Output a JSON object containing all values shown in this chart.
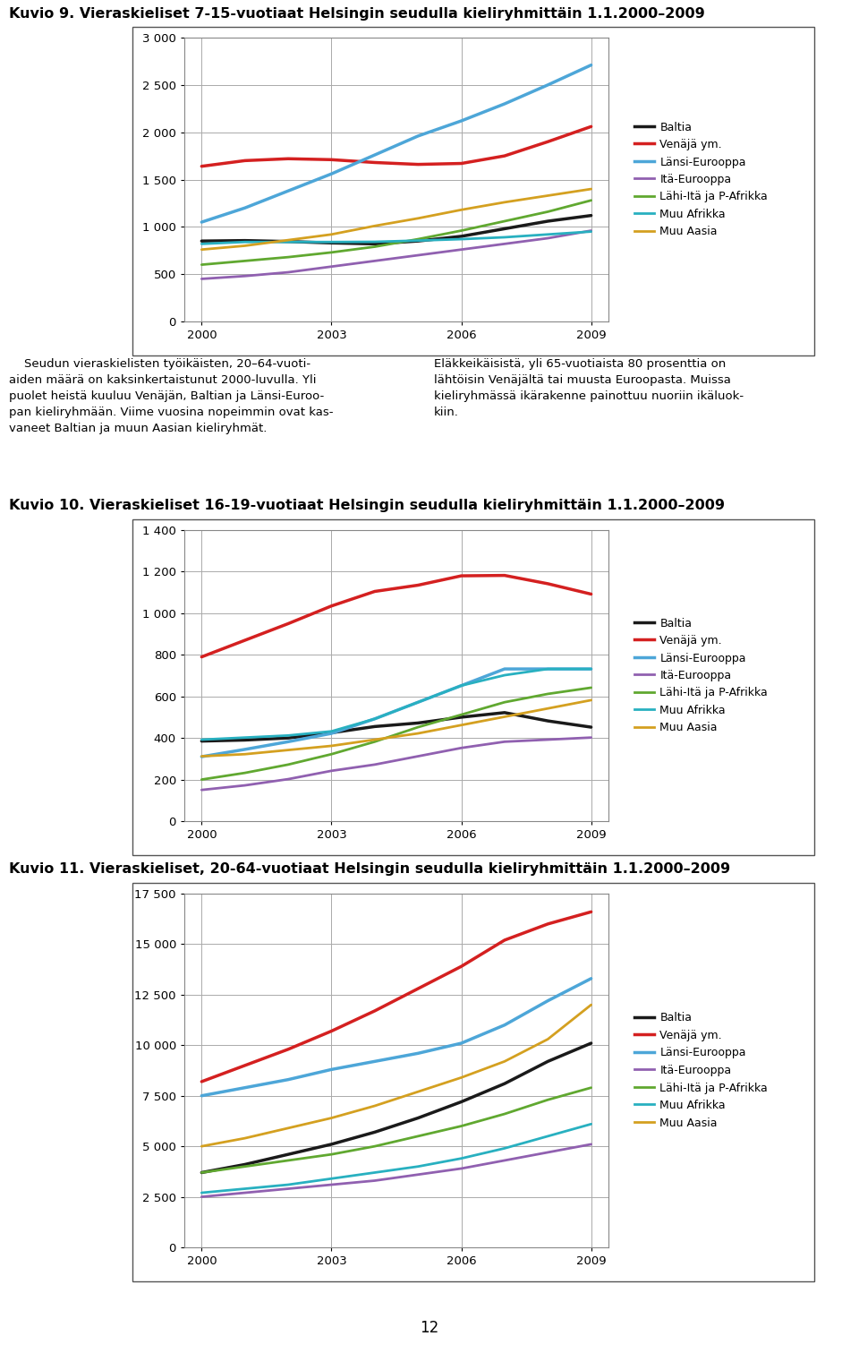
{
  "title1": "Kuvio 9. Vieraskieliset 7-15-vuotiaat Helsingin seudulla kieliryhmittäin 1.1.2000–2009",
  "title2": "Kuvio 10. Vieraskieliset 16-19-vuotiaat Helsingin seudulla kieliryhmittäin 1.1.2000–2009",
  "title3": "Kuvio 11. Vieraskieliset, 20-64-vuotiaat Helsingin seudulla kieliryhmittäin 1.1.2000–2009",
  "text_left": "    Seudun vieraskielisten työikäisten, 20–64-vuoti-\naiden määrä on kaksinkertaistunut 2000-luvulla. Yli\npuolet heistä kuuluu Venäjän, Baltian ja Länsi-Euroo-\npan kieliryhmään. Viime vuosina nopeimmin ovat kas-\nvaneet Baltian ja muun Aasian kieliryhmät.",
  "text_right": "Eläkkeikäisistä, yli 65-vuotiaista 80 prosenttia on\nlähtöisin Venäjältä tai muusta Euroopasta. Muissa\nkieliryhmässä ikärakenne painottuu nuoriin ikäluok-\nkiin.",
  "page_number": "12",
  "years": [
    2000,
    2001,
    2002,
    2003,
    2004,
    2005,
    2006,
    2007,
    2008,
    2009
  ],
  "legend_labels": [
    "Baltia",
    "Venäjä ym.",
    "Länsi-Eurooppa",
    "Itä-Eurooppa",
    "Lähi-Itä ja P-Afrikka",
    "Muu Afrikka",
    "Muu Aasia"
  ],
  "colors": [
    "#1a1a1a",
    "#d42020",
    "#4da6d8",
    "#9060b0",
    "#60a830",
    "#28b0c0",
    "#d4a020"
  ],
  "linewidths": [
    2.5,
    2.5,
    2.5,
    2.0,
    2.0,
    2.0,
    2.0
  ],
  "chart1": {
    "Baltia": [
      850,
      855,
      845,
      830,
      820,
      850,
      900,
      980,
      1060,
      1120
    ],
    "Venäjä ym.": [
      1640,
      1700,
      1720,
      1710,
      1680,
      1660,
      1670,
      1750,
      1900,
      2060
    ],
    "Länsi-Eurooppa": [
      1050,
      1200,
      1380,
      1560,
      1760,
      1960,
      2120,
      2300,
      2500,
      2710
    ],
    "Itä-Eurooppa": [
      450,
      480,
      520,
      580,
      640,
      700,
      760,
      820,
      880,
      960
    ],
    "Lähi-Itä ja P-Afrikka": [
      600,
      640,
      680,
      730,
      790,
      870,
      960,
      1060,
      1160,
      1280
    ],
    "Muu Afrikka": [
      820,
      840,
      840,
      840,
      842,
      855,
      870,
      890,
      920,
      950
    ],
    "Muu Aasia": [
      760,
      800,
      860,
      920,
      1010,
      1090,
      1180,
      1260,
      1330,
      1400
    ]
  },
  "chart1_ylim": [
    0,
    3000
  ],
  "chart1_yticks": [
    0,
    500,
    1000,
    1500,
    2000,
    2500,
    3000
  ],
  "chart2": {
    "Baltia": [
      385,
      390,
      400,
      425,
      455,
      472,
      500,
      522,
      482,
      452
    ],
    "Venäjä ym.": [
      790,
      870,
      950,
      1035,
      1105,
      1135,
      1180,
      1182,
      1142,
      1092
    ],
    "Länsi-Eurooppa": [
      310,
      345,
      382,
      422,
      492,
      572,
      652,
      732,
      732,
      732
    ],
    "Itä-Eurooppa": [
      150,
      172,
      202,
      242,
      272,
      312,
      352,
      382,
      392,
      402
    ],
    "Lähi-Itä ja P-Afrikka": [
      200,
      232,
      272,
      322,
      382,
      452,
      512,
      572,
      612,
      642
    ],
    "Muu Afrikka": [
      392,
      402,
      412,
      432,
      492,
      572,
      652,
      702,
      732,
      732
    ],
    "Muu Aasia": [
      312,
      322,
      342,
      362,
      392,
      422,
      462,
      502,
      542,
      582
    ]
  },
  "chart2_ylim": [
    0,
    1400
  ],
  "chart2_yticks": [
    0,
    200,
    400,
    600,
    800,
    1000,
    1200,
    1400
  ],
  "chart3": {
    "Baltia": [
      3700,
      4100,
      4600,
      5100,
      5700,
      6400,
      7200,
      8100,
      9200,
      10100
    ],
    "Venäjä ym.": [
      8200,
      9000,
      9800,
      10700,
      11700,
      12800,
      13900,
      15200,
      16000,
      16600
    ],
    "Länsi-Eurooppa": [
      7500,
      7900,
      8300,
      8800,
      9200,
      9600,
      10100,
      11000,
      12200,
      13300
    ],
    "Itä-Eurooppa": [
      2500,
      2700,
      2900,
      3100,
      3300,
      3600,
      3900,
      4300,
      4700,
      5100
    ],
    "Lähi-Itä ja P-Afrikka": [
      3700,
      4000,
      4300,
      4600,
      5000,
      5500,
      6000,
      6600,
      7300,
      7900
    ],
    "Muu Afrikka": [
      2700,
      2900,
      3100,
      3400,
      3700,
      4000,
      4400,
      4900,
      5500,
      6100
    ],
    "Muu Aasia": [
      5000,
      5400,
      5900,
      6400,
      7000,
      7700,
      8400,
      9200,
      10300,
      12000
    ]
  },
  "chart3_ylim": [
    0,
    17500
  ],
  "chart3_yticks": [
    0,
    2500,
    5000,
    7500,
    10000,
    12500,
    15000,
    17500
  ],
  "separator_color": "#28b8c8",
  "grid_color": "#aaaaaa",
  "bg_color": "#ffffff"
}
